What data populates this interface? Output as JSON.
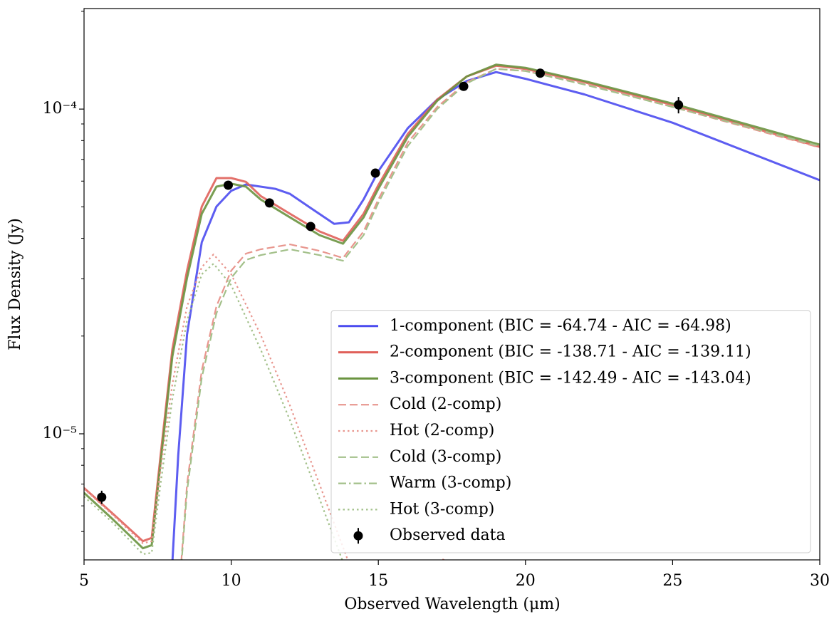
{
  "chart_data": {
    "type": "line",
    "xlabel": "Observed Wavelength (μm)",
    "ylabel": "Flux Density (Jy)",
    "xlim": [
      5,
      30
    ],
    "xticks": [
      5,
      10,
      15,
      20,
      25,
      30
    ],
    "ylim": [
      4.09e-06,
      0.000204
    ],
    "ylog": true,
    "yticks": [
      {
        "value": 1e-05,
        "label": "10⁻⁵"
      },
      {
        "value": 0.0001,
        "label": "10⁻⁴"
      }
    ],
    "yminorticks": [
      5e-06,
      6e-06,
      7e-06,
      8e-06,
      9e-06,
      2e-05,
      3e-05,
      4e-05,
      5e-05,
      6e-05,
      7e-05,
      8e-05,
      9e-05,
      0.0002
    ],
    "legend": "lower right",
    "series": [
      {
        "name": "1-component (BIC = -64.74 - AIC = -64.98)",
        "color": "#4b4bef",
        "linestyle": "solid",
        "x": [
          8.0,
          8.2,
          8.5,
          9.0,
          9.5,
          10.0,
          10.5,
          11.5,
          12.0,
          12.7,
          13.5,
          14.0,
          14.5,
          15.0,
          16.0,
          17.0,
          18.0,
          19.0,
          20.0,
          22.0,
          25.0,
          30.0
        ],
        "values": [
          4.01e-06,
          8.55e-06,
          2.02e-05,
          3.89e-05,
          5.01e-05,
          5.6e-05,
          5.86e-05,
          5.68e-05,
          5.48e-05,
          4.96e-05,
          4.43e-05,
          4.48e-05,
          5.27e-05,
          6.44e-05,
          8.73e-05,
          0.000107,
          0.000122,
          0.00013,
          0.000124,
          0.000111,
          9.08e-05,
          6.04e-05
        ]
      },
      {
        "name": "2-component (BIC = -138.71 - AIC = -139.11)",
        "color": "#e0605a",
        "linestyle": "solid",
        "x": [
          5.0,
          6.0,
          7.0,
          7.3,
          7.6,
          8.0,
          8.5,
          9.0,
          9.5,
          10.0,
          10.5,
          11.0,
          12.0,
          13.0,
          13.8,
          14.5,
          15.0,
          16.0,
          17.0,
          18.0,
          19.0,
          20.0,
          22.0,
          25.0,
          30.0
        ],
        "values": [
          6.81e-06,
          5.65e-06,
          4.67e-06,
          4.78e-06,
          8.55e-06,
          1.82e-05,
          3.18e-05,
          5.01e-05,
          6.13e-05,
          6.13e-05,
          5.97e-05,
          5.4e-05,
          4.76e-05,
          4.2e-05,
          3.93e-05,
          4.76e-05,
          5.83e-05,
          8.38e-05,
          0.000107,
          0.000126,
          0.000136,
          0.000133,
          0.000121,
          0.000103,
          7.65e-05
        ]
      },
      {
        "name": "3-component (BIC = -142.49 - AIC = -143.04)",
        "color": "#6a9440",
        "linestyle": "solid",
        "x": [
          5.0,
          6.0,
          7.0,
          7.3,
          7.6,
          8.0,
          8.5,
          9.0,
          9.5,
          10.0,
          10.5,
          11.0,
          12.0,
          13.0,
          13.8,
          14.5,
          15.0,
          16.0,
          17.0,
          18.0,
          19.0,
          20.0,
          22.0,
          25.0,
          30.0
        ],
        "values": [
          6.58e-06,
          5.43e-06,
          4.44e-06,
          4.54e-06,
          8.13e-06,
          1.73e-05,
          3.02e-05,
          4.76e-05,
          5.77e-05,
          5.89e-05,
          5.77e-05,
          5.27e-05,
          4.64e-05,
          4.09e-05,
          3.85e-05,
          4.64e-05,
          5.68e-05,
          8.21e-05,
          0.000106,
          0.000126,
          0.000137,
          0.000134,
          0.000122,
          0.000104,
          7.77e-05
        ]
      },
      {
        "name": "Cold (2-comp)",
        "color": "#e8968e",
        "linestyle": "dashed",
        "x": [
          8.3,
          8.5,
          9.0,
          9.5,
          10.0,
          10.5,
          11.0,
          12.0,
          13.0,
          13.8,
          14.5,
          15.0,
          16.0,
          17.0,
          18.0,
          19.0,
          20.0,
          22.0,
          25.0,
          30.0
        ],
        "values": [
          4.01e-06,
          6.99e-06,
          1.57e-05,
          2.47e-05,
          3.18e-05,
          3.59e-05,
          3.7e-05,
          3.83e-05,
          3.66e-05,
          3.48e-05,
          4.2e-05,
          5.27e-05,
          7.89e-05,
          0.0001015,
          0.000121,
          0.000133,
          0.000131,
          0.00012,
          0.0001015,
          7.61e-05
        ]
      },
      {
        "name": "Hot (2-comp)",
        "color": "#e8968e",
        "linestyle": "dotted",
        "x": [
          5.0,
          6.0,
          7.0,
          7.3,
          7.6,
          8.0,
          8.5,
          9.0,
          9.4,
          10.0,
          11.0,
          12.0,
          13.0,
          14.0,
          16.5,
          17.2,
          17.8
        ],
        "values": [
          6.77e-06,
          5.6e-06,
          4.6e-06,
          4.67e-06,
          7.73e-06,
          1.42e-05,
          2.47e-05,
          3.26e-05,
          3.57e-05,
          3.1e-05,
          2.02e-05,
          1.22e-05,
          6.99e-06,
          4e-06,
          3.9e-06,
          4.1e-06,
          3.9e-06
        ]
      },
      {
        "name": "Cold (3-comp)",
        "color": "#a3c08a",
        "linestyle": "dashed",
        "x": [
          8.3,
          8.5,
          9.0,
          9.5,
          10.0,
          10.5,
          11.0,
          12.0,
          13.0,
          13.8,
          14.5,
          15.0,
          16.0,
          17.0,
          18.0,
          19.0,
          20.0,
          22.0,
          25.0,
          30.0
        ],
        "values": [
          3.9e-06,
          6.65e-06,
          1.49e-05,
          2.35e-05,
          3.02e-05,
          3.43e-05,
          3.55e-05,
          3.7e-05,
          3.55e-05,
          3.41e-05,
          4.09e-05,
          5.14e-05,
          7.69e-05,
          0.0001,
          0.00012,
          0.000133,
          0.000131,
          0.000119,
          0.0001015,
          7.69e-05
        ]
      },
      {
        "name": "Warm (3-comp)",
        "color": "#a3c08a",
        "linestyle": "dashdot",
        "x": [],
        "values": []
      },
      {
        "name": "Hot (3-comp)",
        "color": "#a3c08a",
        "linestyle": "dotted",
        "x": [
          5.0,
          6.0,
          7.0,
          7.3,
          7.6,
          8.0,
          8.5,
          9.0,
          9.4,
          10.0,
          11.0,
          12.0,
          13.0,
          14.0
        ],
        "values": [
          6.41e-06,
          5.3e-06,
          4.26e-06,
          4.3e-06,
          6.99e-06,
          1.28e-05,
          2.23e-05,
          3.1e-05,
          3.34e-05,
          2.87e-05,
          1.82e-05,
          1.1e-05,
          6.31e-06,
          3.6e-06
        ]
      },
      {
        "name": "Observed data",
        "color": "#000000",
        "linestyle": "none",
        "marker": "o",
        "x": [
          5.6,
          9.9,
          11.3,
          12.7,
          14.9,
          17.9,
          20.5,
          25.2
        ],
        "values": [
          6.38e-06,
          5.83e-05,
          5.14e-05,
          4.35e-05,
          6.35e-05,
          0.0001175,
          0.000129,
          0.000103
        ],
        "errors": [
          3e-07,
          1e-06,
          8e-07,
          7e-07,
          1e-06,
          2e-06,
          2e-06,
          6e-06
        ]
      }
    ]
  }
}
